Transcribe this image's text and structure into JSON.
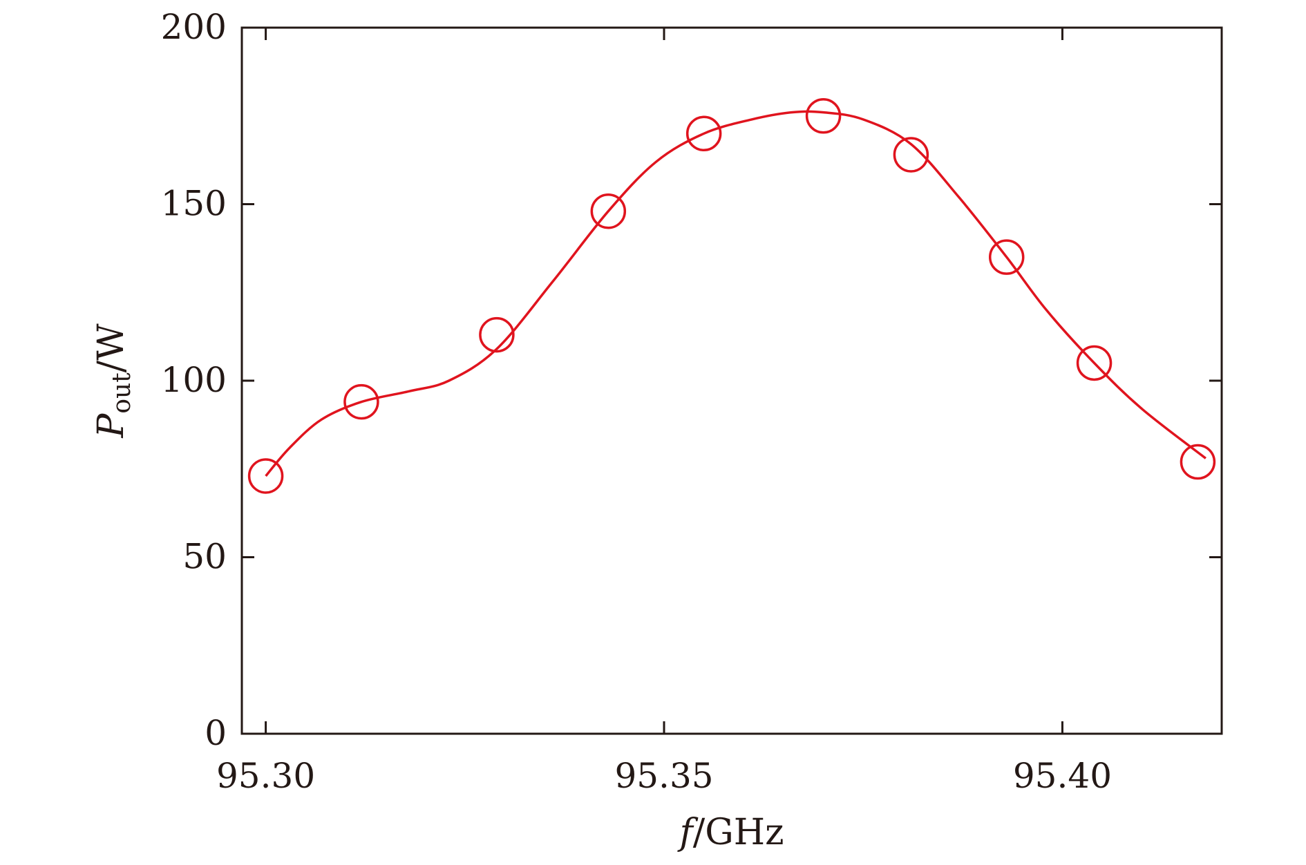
{
  "chart_data": {
    "type": "line",
    "x_label": {
      "var": "f",
      "sep": "/",
      "unit": "GHz"
    },
    "y_label": {
      "var": "P",
      "sub": "out",
      "sep": "/",
      "unit": "W"
    },
    "xlim": [
      95.297,
      95.42
    ],
    "ylim": [
      0,
      200
    ],
    "x_ticks": [
      95.3,
      95.35,
      95.4
    ],
    "x_tick_labels": [
      "95.30",
      "95.35",
      "95.40"
    ],
    "y_ticks": [
      0,
      50,
      100,
      150,
      200
    ],
    "y_tick_labels": [
      "0",
      "50",
      "100",
      "150",
      "200"
    ],
    "grid": false,
    "legend": "none",
    "series": [
      {
        "marker": "open-circle",
        "color": "#e0141e",
        "x": [
          95.3,
          95.312,
          95.329,
          95.343,
          95.355,
          95.37,
          95.381,
          95.393,
          95.404,
          95.417
        ],
        "y": [
          73,
          94,
          113,
          148,
          170,
          175,
          164,
          135,
          105,
          77
        ]
      },
      {
        "style": "smooth-line",
        "color": "#e0141e",
        "x": [
          95.3,
          95.303,
          95.307,
          95.312,
          95.318,
          95.323,
          95.329,
          95.336,
          95.343,
          95.349,
          95.355,
          95.361,
          95.366,
          95.37,
          95.375,
          95.381,
          95.387,
          95.393,
          95.398,
          95.404,
          95.41,
          95.418
        ],
        "y": [
          73,
          81,
          89,
          94,
          97,
          100,
          109,
          128,
          148,
          162,
          170,
          174,
          176,
          176,
          174,
          167,
          152,
          135,
          120,
          105,
          92,
          78
        ]
      }
    ]
  }
}
